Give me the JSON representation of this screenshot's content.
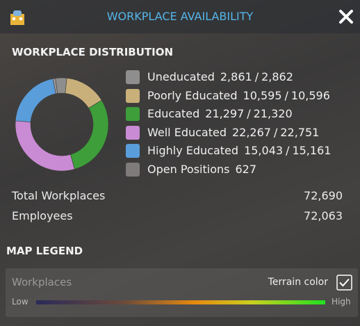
{
  "header": {
    "title": "WORKPLACE AVAILABILITY"
  },
  "distribution": {
    "title": "WORKPLACE DISTRIBUTION",
    "separator": "/",
    "items": [
      {
        "name": "Uneducated",
        "color": "#8e8e8e",
        "employees": {
          "value": 2861,
          "label": "2,861"
        },
        "workplaces": {
          "value": 2862,
          "label": "2,862"
        }
      },
      {
        "name": "Poorly Educated",
        "color": "#c9b07a",
        "employees": {
          "value": 10595,
          "label": "10,595"
        },
        "workplaces": {
          "value": 10596,
          "label": "10,596"
        }
      },
      {
        "name": "Educated",
        "color": "#3d9e3a",
        "employees": {
          "value": 21297,
          "label": "21,297"
        },
        "workplaces": {
          "value": 21320,
          "label": "21,320"
        }
      },
      {
        "name": "Well Educated",
        "color": "#c98bd3",
        "employees": {
          "value": 22267,
          "label": "22,267"
        },
        "workplaces": {
          "value": 22751,
          "label": "22,751"
        }
      },
      {
        "name": "Highly Educated",
        "color": "#5a9ddb",
        "employees": {
          "value": 15043,
          "label": "15,043"
        },
        "workplaces": {
          "value": 15161,
          "label": "15,161"
        }
      }
    ],
    "open_positions": {
      "name": "Open Positions",
      "color": "#9b9696",
      "value": 627
    }
  },
  "totals": [
    {
      "label": "Total Workplaces",
      "value": {
        "value": 72690,
        "label": "72,690"
      }
    },
    {
      "label": "Employees",
      "value": {
        "value": 72063,
        "label": "72,063"
      }
    }
  ],
  "map_legend": {
    "title": "MAP LEGEND",
    "layer": "Workplaces",
    "toggle": "Terrain color",
    "checked": true,
    "low": "Low",
    "high": "High"
  }
}
